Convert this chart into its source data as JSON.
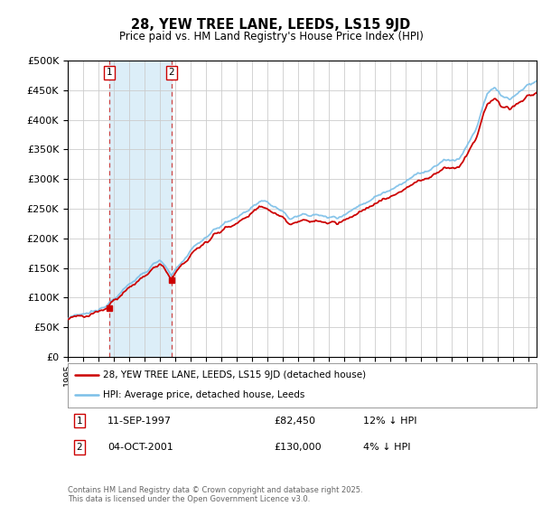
{
  "title": "28, YEW TREE LANE, LEEDS, LS15 9JD",
  "subtitle": "Price paid vs. HM Land Registry's House Price Index (HPI)",
  "ylim": [
    0,
    500000
  ],
  "xlim_start": 1995.0,
  "xlim_end": 2025.5,
  "hpi_color": "#7bbfe8",
  "price_color": "#cc0000",
  "sale1_x": 1997.69,
  "sale1_y": 82450,
  "sale2_x": 2001.75,
  "sale2_y": 130000,
  "sale1_label": "11-SEP-1997",
  "sale1_price": "£82,450",
  "sale1_hpi": "12% ↓ HPI",
  "sale2_label": "04-OCT-2001",
  "sale2_price": "£130,000",
  "sale2_hpi": "4% ↓ HPI",
  "legend_property": "28, YEW TREE LANE, LEEDS, LS15 9JD (detached house)",
  "legend_hpi": "HPI: Average price, detached house, Leeds",
  "footer": "Contains HM Land Registry data © Crown copyright and database right 2025.\nThis data is licensed under the Open Government Licence v3.0.",
  "background_color": "#ffffff",
  "plot_bg_color": "#ffffff",
  "grid_color": "#cccccc",
  "shade_color": "#dceef8"
}
